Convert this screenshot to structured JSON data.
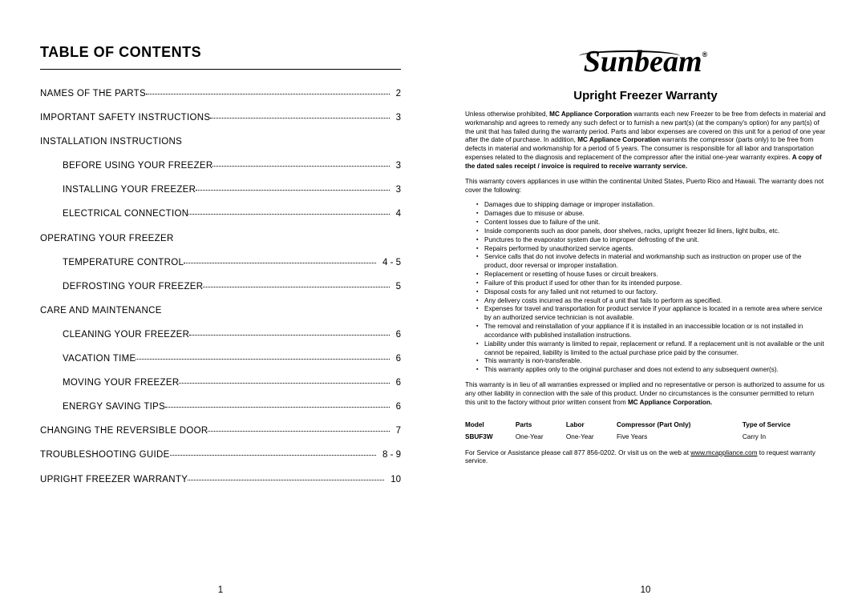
{
  "left": {
    "title": "TABLE OF CONTENTS",
    "toc": [
      {
        "label": "NAMES OF THE PARTS",
        "page": "2",
        "type": "item"
      },
      {
        "label": "IMPORTANT SAFETY INSTRUCTIONS",
        "page": "3",
        "type": "item"
      },
      {
        "label": "INSTALLATION INSTRUCTIONS",
        "page": "",
        "type": "heading"
      },
      {
        "label": "BEFORE USING YOUR FREEZER",
        "page": "3",
        "type": "sub"
      },
      {
        "label": "INSTALLING YOUR FREEZER",
        "page": "3",
        "type": "sub"
      },
      {
        "label": "ELECTRICAL CONNECTION",
        "page": "4",
        "type": "sub"
      },
      {
        "label": "OPERATING YOUR FREEZER",
        "page": "",
        "type": "heading"
      },
      {
        "label": "TEMPERATURE CONTROL",
        "page": "4 - 5",
        "type": "sub"
      },
      {
        "label": "DEFROSTING YOUR FREEZER",
        "page": "5",
        "type": "sub"
      },
      {
        "label": "CARE AND MAINTENANCE",
        "page": "",
        "type": "heading"
      },
      {
        "label": "CLEANING YOUR FREEZER",
        "page": "6",
        "type": "sub"
      },
      {
        "label": "VACATION TIME",
        "page": "6",
        "type": "sub"
      },
      {
        "label": "MOVING YOUR FREEZER",
        "page": "6",
        "type": "sub"
      },
      {
        "label": "ENERGY SAVING TIPS",
        "page": "6",
        "type": "sub"
      },
      {
        "label": "CHANGING THE REVERSIBLE DOOR",
        "page": "7",
        "type": "item"
      },
      {
        "label": "TROUBLESHOOTING GUIDE",
        "page": "8 - 9",
        "type": "item"
      },
      {
        "label": "UPRIGHT FREEZER WARRANTY",
        "page": "10",
        "type": "item"
      }
    ],
    "page_number": "1"
  },
  "right": {
    "brand": "Sunbeam",
    "reg": "®",
    "title": "Upright Freezer Warranty",
    "para1_pre": "Unless otherwise prohibited, ",
    "para1_b1": "MC Appliance Corporation",
    "para1_mid": " warrants each new Freezer to be free from defects in material and workmanship and agrees to remedy any such defect or to furnish a new part(s) (at the company's option) for any part(s) of the unit that has failed during the warranty period. Parts and labor expenses are covered on this unit for a period of one year after the date of purchase. In addition, ",
    "para1_b2": "MC Appliance Corporation",
    "para1_post": " warrants the compressor (parts only) to be free from defects in material and workmanship for a period of 5 years. The consumer is responsible for all labor and transportation expenses related to the diagnosis and replacement of the compressor after the initial one-year warranty expires. ",
    "para1_b3": "A copy of the dated sales receipt / invoice is required to receive warranty service.",
    "para2": "This warranty covers appliances in use within the continental United States, Puerto Rico and Hawaii. The warranty does not cover the following:",
    "exclusions": [
      "Damages due to shipping damage or improper installation.",
      "Damages due to misuse or abuse.",
      "Content losses due to failure of the unit.",
      "Inside components such as door panels, door shelves, racks, upright freezer lid liners, light bulbs, etc.",
      "Punctures to the evaporator system due to improper defrosting of the unit.",
      "Repairs performed by unauthorized service agents.",
      "Service calls that do not involve defects in material and workmanship such as instruction on proper use of the product, door reversal or improper installation.",
      "Replacement or resetting of house fuses or circuit breakers.",
      "Failure of this product if used for other than for its intended purpose.",
      "Disposal costs for any failed unit not returned to our factory.",
      "Any delivery costs incurred as the result of a unit that fails to perform as specified.",
      "Expenses for travel and transportation for product service if your appliance is located in a remote area where service by an authorized service technician is not available.",
      "The removal and reinstallation of your appliance if it is installed in an inaccessible location or is not installed in accordance with published installation instructions.",
      "Liability under this warranty is limited to repair, replacement or refund. If a replacement unit is not available or the unit cannot be repaired, liability is limited to the actual purchase price paid by the consumer.",
      "This warranty is non-transferable.",
      "This warranty applies only to the original purchaser and does not extend to any subsequent owner(s)."
    ],
    "para3_pre": "This warranty is in lieu of all warranties expressed or implied and no representative or person is authorized to assume for us any other liability in connection with the sale of this product. Under no circumstances is the consumer permitted to return this unit to the factory without prior written consent from ",
    "para3_b": "MC Appliance Corporation.",
    "table": {
      "headers": [
        "Model",
        "Parts",
        "Labor",
        "Compressor (Part Only)",
        "Type of Service"
      ],
      "row": [
        "SBUF3W",
        "One-Year",
        "One-Year",
        "Five Years",
        "Carry In"
      ]
    },
    "service_pre": "For Service or Assistance please call 877 856-0202. Or visit us on the web at ",
    "service_link": "www.mcappliance.com",
    "service_post": " to request warranty service.",
    "page_number": "10"
  }
}
